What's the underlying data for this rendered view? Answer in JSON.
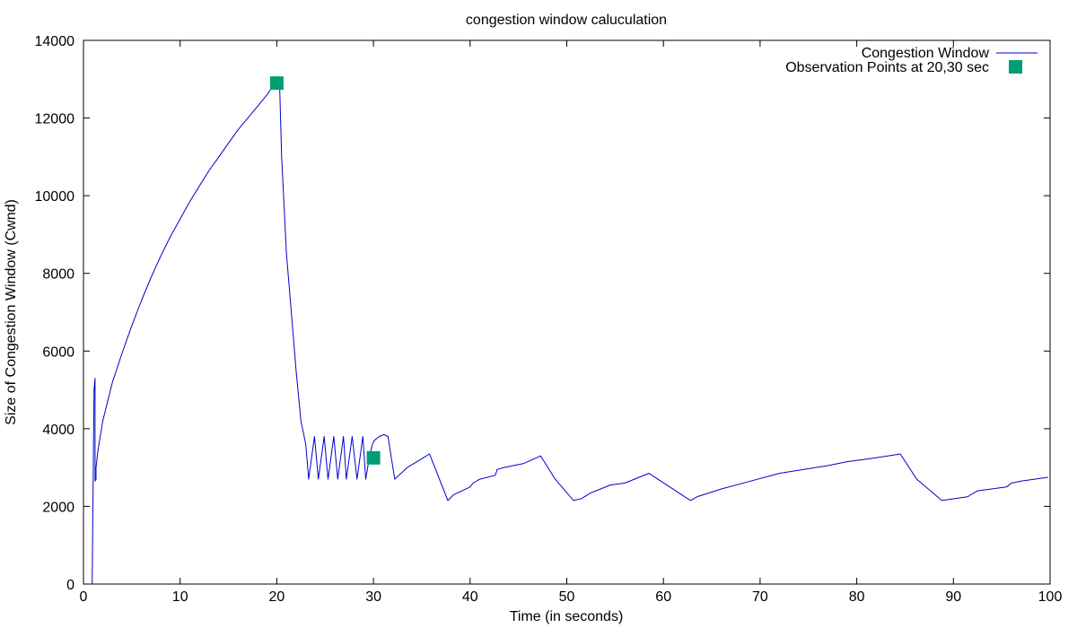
{
  "chart_data": {
    "type": "line",
    "title": "congestion window caluculation",
    "xlabel": "Time (in seconds)",
    "ylabel": "Size of Congestion Window (Cwnd)",
    "xlim": [
      0,
      100
    ],
    "ylim": [
      0,
      14000
    ],
    "xticks": [
      0,
      10,
      20,
      30,
      40,
      50,
      60,
      70,
      80,
      90,
      100
    ],
    "yticks": [
      0,
      2000,
      4000,
      6000,
      8000,
      10000,
      12000,
      14000
    ],
    "grid": false,
    "legend_position": "top-right",
    "series": [
      {
        "name": "Congestion Window",
        "kind": "line",
        "color": "#0000cc",
        "x": [
          0.9,
          1.1,
          1.2,
          1.2,
          1.3,
          1.3,
          1.5,
          2,
          3,
          4,
          5,
          6,
          7,
          8,
          9,
          10,
          11,
          12,
          13,
          14,
          15,
          16,
          17,
          18,
          19,
          19.8,
          20.3,
          20.5,
          21,
          21.5,
          22,
          22.5,
          23,
          23.3,
          23.9,
          24.3,
          24.9,
          25.3,
          25.9,
          26.3,
          26.9,
          27.2,
          27.8,
          28.3,
          28.9,
          29.2,
          29.6,
          29.9,
          30.1,
          30.6,
          31.1,
          31.5,
          32.2,
          33.5,
          34.5,
          35.8,
          37.7,
          38.3,
          40,
          40.3,
          41,
          42.6,
          42.8,
          43.5,
          45.5,
          47.3,
          48.8,
          50.7,
          51.5,
          52.5,
          53.5,
          54.5,
          56,
          57,
          58.5,
          62.8,
          63.5,
          66,
          69,
          72,
          74.5,
          77,
          79,
          80.5,
          82,
          84.5,
          86.2,
          88.8,
          91.5,
          91.8,
          92.5,
          95.5,
          96,
          97,
          99.8
        ],
        "y": [
          0,
          5000,
          5300,
          2650,
          2700,
          3000,
          3450,
          4200,
          5200,
          5950,
          6650,
          7300,
          7900,
          8450,
          8950,
          9400,
          9850,
          10250,
          10650,
          11000,
          11350,
          11700,
          12000,
          12300,
          12600,
          12900,
          12800,
          11000,
          8500,
          7000,
          5500,
          4200,
          3600,
          2700,
          3800,
          2700,
          3800,
          2700,
          3800,
          2700,
          3800,
          2700,
          3800,
          2700,
          3800,
          2700,
          3300,
          3600,
          3700,
          3800,
          3850,
          3800,
          2700,
          3000,
          3150,
          3350,
          2150,
          2300,
          2500,
          2600,
          2700,
          2800,
          2950,
          3000,
          3100,
          3300,
          2700,
          2150,
          2200,
          2350,
          2450,
          2550,
          2600,
          2700,
          2850,
          2150,
          2250,
          2450,
          2650,
          2850,
          2950,
          3050,
          3150,
          3200,
          3250,
          3350,
          2700,
          2150,
          2250,
          2300,
          2400,
          2500,
          2600,
          2650,
          2750
        ]
      },
      {
        "name": "Observation Points at 20,30 sec",
        "kind": "points",
        "color": "#009e73",
        "x": [
          20,
          30
        ],
        "y": [
          12900,
          3250
        ]
      }
    ]
  }
}
